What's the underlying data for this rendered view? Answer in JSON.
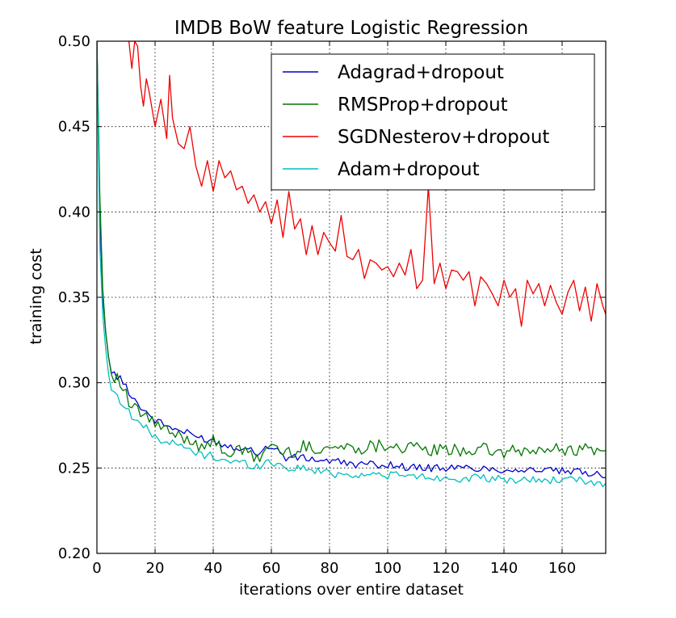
{
  "chart_data": {
    "type": "line",
    "title": "IMDB BoW feature Logistic Regression",
    "xlabel": "iterations over entire dataset",
    "ylabel": "training cost",
    "xlim": [
      0,
      175
    ],
    "ylim": [
      0.2,
      0.5
    ],
    "xticks": [
      0,
      20,
      40,
      60,
      80,
      100,
      120,
      140,
      160
    ],
    "yticks": [
      0.2,
      0.25,
      0.3,
      0.35,
      0.4,
      0.45,
      0.5
    ],
    "xtick_labels": [
      "0",
      "20",
      "40",
      "60",
      "80",
      "100",
      "120",
      "140",
      "160"
    ],
    "ytick_labels": [
      "0.20",
      "0.25",
      "0.30",
      "0.35",
      "0.40",
      "0.45",
      "0.50"
    ],
    "grid": true,
    "legend_position": "top-right",
    "series": [
      {
        "name": "Adagrad+dropout",
        "color": "#0000cc",
        "x": [
          0,
          1,
          2,
          3,
          4,
          5,
          6,
          8,
          10,
          12,
          15,
          20,
          25,
          30,
          35,
          40,
          45,
          50,
          55,
          60,
          65,
          70,
          80,
          90,
          100,
          110,
          120,
          130,
          140,
          150,
          160,
          170,
          175
        ],
        "y": [
          0.5,
          0.4,
          0.35,
          0.33,
          0.315,
          0.307,
          0.305,
          0.302,
          0.298,
          0.292,
          0.286,
          0.278,
          0.274,
          0.271,
          0.268,
          0.266,
          0.263,
          0.262,
          0.259,
          0.263,
          0.256,
          0.256,
          0.254,
          0.252,
          0.252,
          0.25,
          0.25,
          0.25,
          0.249,
          0.249,
          0.248,
          0.247,
          0.246
        ]
      },
      {
        "name": "RMSProp+dropout",
        "color": "#007700",
        "x": [
          0,
          1,
          2,
          3,
          4,
          5,
          6,
          8,
          10,
          12,
          15,
          20,
          25,
          30,
          35,
          40,
          45,
          50,
          55,
          60,
          65,
          70,
          80,
          90,
          100,
          110,
          120,
          130,
          140,
          150,
          160,
          170,
          175
        ],
        "y": [
          0.5,
          0.41,
          0.355,
          0.33,
          0.315,
          0.308,
          0.304,
          0.3,
          0.292,
          0.285,
          0.282,
          0.276,
          0.27,
          0.268,
          0.264,
          0.265,
          0.259,
          0.26,
          0.255,
          0.264,
          0.258,
          0.262,
          0.262,
          0.262,
          0.264,
          0.261,
          0.26,
          0.261,
          0.259,
          0.26,
          0.261,
          0.261,
          0.258
        ]
      },
      {
        "name": "SGDNesterov+dropout",
        "color": "#ee0000",
        "x": [
          11,
          12,
          13,
          14,
          15,
          16,
          17,
          18,
          20,
          22,
          24,
          25,
          26,
          28,
          30,
          32,
          34,
          36,
          38,
          40,
          42,
          44,
          46,
          48,
          50,
          52,
          54,
          56,
          58,
          60,
          62,
          64,
          66,
          68,
          70,
          72,
          74,
          76,
          78,
          80,
          82,
          84,
          86,
          88,
          90,
          92,
          94,
          96,
          98,
          100,
          102,
          104,
          106,
          108,
          110,
          112,
          114,
          116,
          118,
          120,
          122,
          124,
          126,
          128,
          130,
          132,
          134,
          136,
          138,
          140,
          142,
          144,
          146,
          148,
          150,
          152,
          154,
          156,
          158,
          160,
          162,
          164,
          166,
          168,
          170,
          172,
          174,
          175
        ],
        "y": [
          0.5,
          0.484,
          0.5,
          0.497,
          0.474,
          0.462,
          0.478,
          0.47,
          0.45,
          0.466,
          0.443,
          0.48,
          0.455,
          0.44,
          0.437,
          0.45,
          0.427,
          0.415,
          0.43,
          0.412,
          0.43,
          0.42,
          0.424,
          0.413,
          0.415,
          0.405,
          0.41,
          0.4,
          0.406,
          0.393,
          0.407,
          0.385,
          0.412,
          0.39,
          0.396,
          0.375,
          0.392,
          0.375,
          0.388,
          0.382,
          0.377,
          0.398,
          0.374,
          0.372,
          0.378,
          0.361,
          0.372,
          0.37,
          0.366,
          0.368,
          0.362,
          0.37,
          0.363,
          0.378,
          0.355,
          0.36,
          0.415,
          0.358,
          0.37,
          0.355,
          0.366,
          0.365,
          0.36,
          0.365,
          0.345,
          0.362,
          0.358,
          0.352,
          0.345,
          0.36,
          0.35,
          0.355,
          0.333,
          0.36,
          0.352,
          0.358,
          0.345,
          0.357,
          0.347,
          0.34,
          0.353,
          0.36,
          0.342,
          0.356,
          0.336,
          0.358,
          0.345,
          0.34
        ]
      },
      {
        "name": "Adam+dropout",
        "color": "#00bfbf",
        "x": [
          0,
          1,
          2,
          3,
          4,
          5,
          6,
          8,
          10,
          12,
          15,
          20,
          25,
          30,
          35,
          40,
          45,
          50,
          55,
          60,
          65,
          70,
          80,
          90,
          100,
          110,
          120,
          130,
          140,
          150,
          160,
          170,
          175
        ],
        "y": [
          0.5,
          0.38,
          0.34,
          0.32,
          0.305,
          0.297,
          0.293,
          0.29,
          0.286,
          0.28,
          0.276,
          0.268,
          0.265,
          0.262,
          0.258,
          0.257,
          0.254,
          0.253,
          0.251,
          0.254,
          0.25,
          0.25,
          0.247,
          0.246,
          0.246,
          0.245,
          0.244,
          0.244,
          0.243,
          0.243,
          0.243,
          0.242,
          0.241
        ]
      }
    ]
  }
}
